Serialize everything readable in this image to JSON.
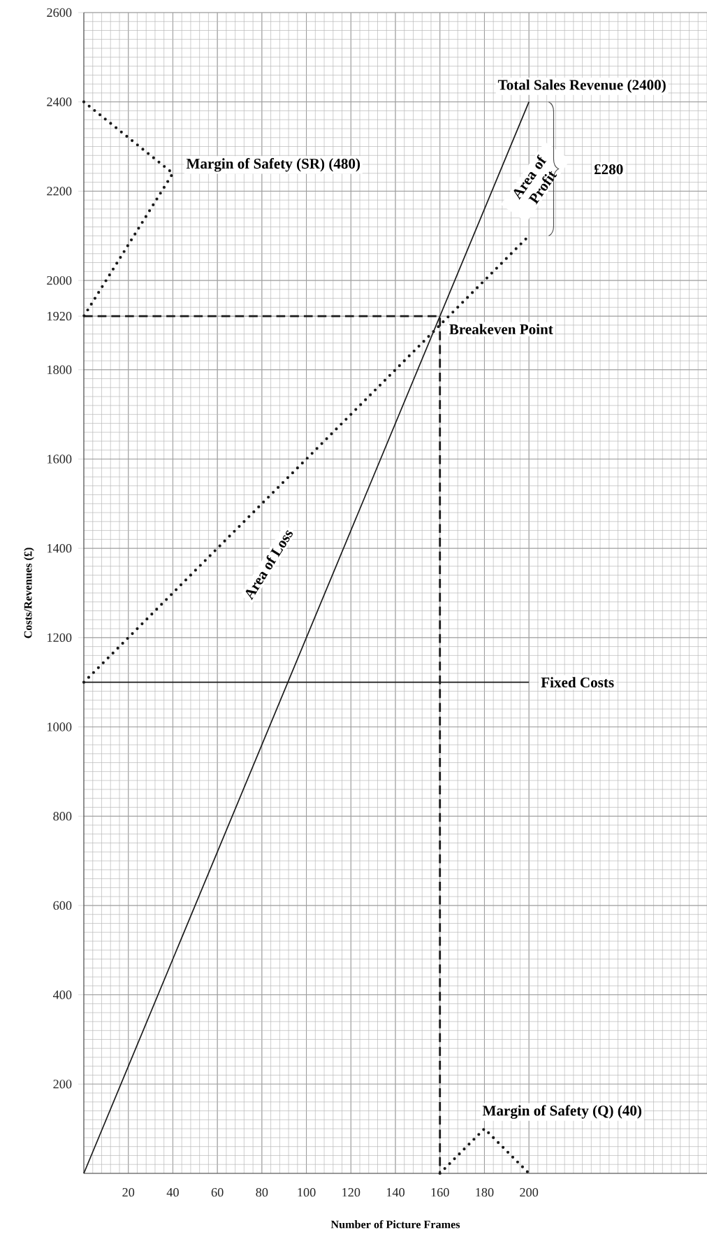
{
  "chart_data": {
    "type": "line",
    "xlabel": "Number of Picture Frames",
    "ylabel": "Costs/Revenues (£)",
    "xlim": [
      0,
      280
    ],
    "ylim": [
      0,
      2600
    ],
    "xticks": [
      20,
      40,
      60,
      80,
      100,
      120,
      140,
      160,
      180,
      200
    ],
    "yticks": [
      200,
      400,
      600,
      800,
      1000,
      1200,
      1400,
      1600,
      1800,
      1920,
      2000,
      2200,
      2400,
      2600
    ],
    "grid": true,
    "marker": "none",
    "series": [
      {
        "x": [
          0,
          200
        ],
        "values": [
          0,
          2400
        ],
        "color": "#1a1a1a",
        "line_style": "solid"
      },
      {
        "x": [
          0,
          200
        ],
        "values": [
          1100,
          1100
        ],
        "color": "#1a1a1a",
        "line_style": "solid"
      },
      {
        "x": [
          0,
          200
        ],
        "values": [
          1100,
          2100
        ],
        "color": "#1a1a1a",
        "line_style": "dotted"
      },
      {
        "x": [
          0,
          40,
          0
        ],
        "values": [
          2400,
          2240,
          1920
        ],
        "color": "#1a1a1a",
        "line_style": "dotted"
      },
      {
        "x": [
          160,
          180,
          200
        ],
        "values": [
          0,
          100,
          0
        ],
        "color": "#1a1a1a",
        "line_style": "dotted"
      },
      {
        "x": [
          0,
          160,
          160
        ],
        "values": [
          1920,
          1920,
          0
        ],
        "color": "#1a1a1a",
        "line_style": "dashed"
      }
    ],
    "annotations": [
      {
        "text": "Total Sales Revenue (2400)",
        "x": 200,
        "y": 2400
      },
      {
        "text": "Margin of Safety (SR) (480)",
        "x": 40,
        "y": 2240
      },
      "Area of Profit",
      "£280",
      {
        "text": "Breakeven Point",
        "x": 160,
        "y": 1920
      },
      "Area of Loss",
      {
        "text": "Fixed Costs",
        "x": 200,
        "y": 1100
      },
      {
        "text": "Margin of Safety (Q) (40)",
        "x": 180,
        "y": 100
      }
    ]
  }
}
